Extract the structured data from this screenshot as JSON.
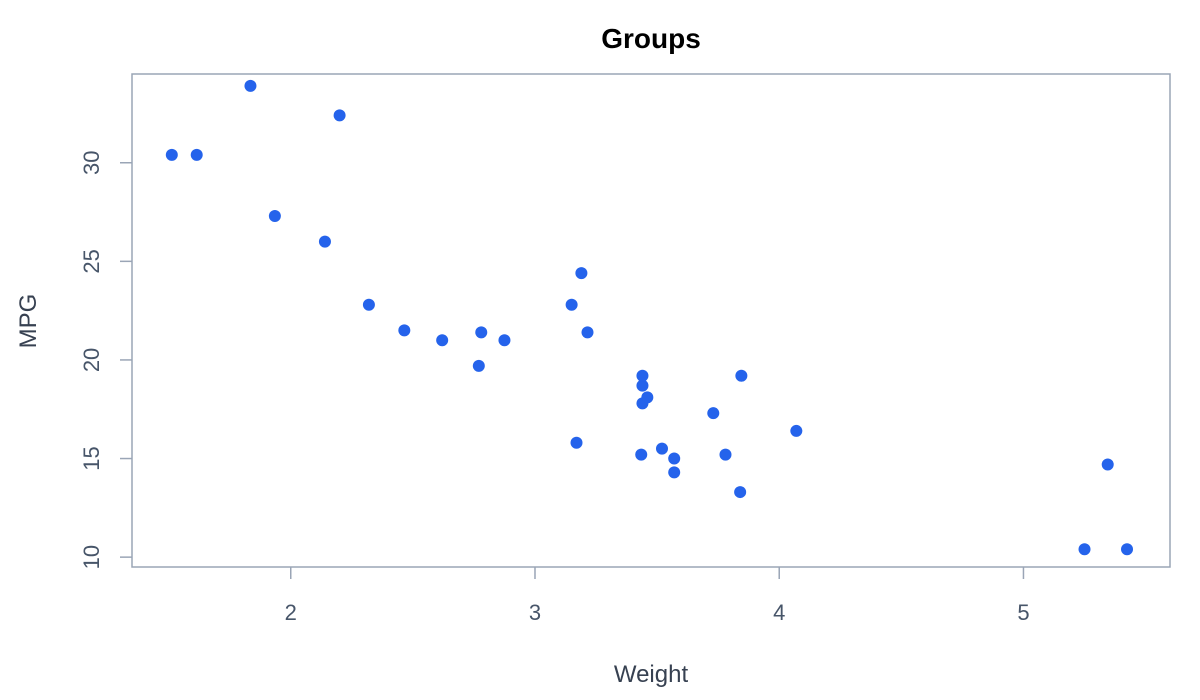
{
  "chart_data": {
    "type": "scatter",
    "title": "Groups",
    "xlabel": "Weight",
    "ylabel": "MPG",
    "xlim": [
      1.35,
      5.6
    ],
    "ylim": [
      9.5,
      34.5
    ],
    "x_ticks": [
      2,
      3,
      4,
      5
    ],
    "y_ticks": [
      10,
      15,
      20,
      25,
      30
    ],
    "grid": false,
    "legend": "none",
    "colors": {
      "point": "#2563EB",
      "axis": "#9AA5B6",
      "tick_text": "#475569",
      "label_text": "#374151",
      "title_text": "#000000"
    },
    "series": [
      {
        "points": [
          {
            "x": 1.513,
            "y": 30.4
          },
          {
            "x": 1.615,
            "y": 30.4
          },
          {
            "x": 1.835,
            "y": 33.9
          },
          {
            "x": 1.935,
            "y": 27.3
          },
          {
            "x": 2.14,
            "y": 26.0
          },
          {
            "x": 2.2,
            "y": 32.4
          },
          {
            "x": 2.32,
            "y": 22.8
          },
          {
            "x": 2.465,
            "y": 21.5
          },
          {
            "x": 2.62,
            "y": 21.0
          },
          {
            "x": 2.77,
            "y": 19.7
          },
          {
            "x": 2.78,
            "y": 21.4
          },
          {
            "x": 2.875,
            "y": 21.0
          },
          {
            "x": 3.15,
            "y": 22.8
          },
          {
            "x": 3.17,
            "y": 15.8
          },
          {
            "x": 3.19,
            "y": 24.4
          },
          {
            "x": 3.215,
            "y": 21.4
          },
          {
            "x": 3.435,
            "y": 15.2
          },
          {
            "x": 3.44,
            "y": 18.7
          },
          {
            "x": 3.44,
            "y": 19.2
          },
          {
            "x": 3.44,
            "y": 17.8
          },
          {
            "x": 3.46,
            "y": 18.1
          },
          {
            "x": 3.52,
            "y": 15.5
          },
          {
            "x": 3.57,
            "y": 15.0
          },
          {
            "x": 3.57,
            "y": 14.3
          },
          {
            "x": 3.73,
            "y": 17.3
          },
          {
            "x": 3.78,
            "y": 15.2
          },
          {
            "x": 3.84,
            "y": 13.3
          },
          {
            "x": 3.845,
            "y": 19.2
          },
          {
            "x": 4.07,
            "y": 16.4
          },
          {
            "x": 5.25,
            "y": 10.4
          },
          {
            "x": 5.345,
            "y": 14.7
          },
          {
            "x": 5.424,
            "y": 10.4
          }
        ]
      }
    ]
  }
}
